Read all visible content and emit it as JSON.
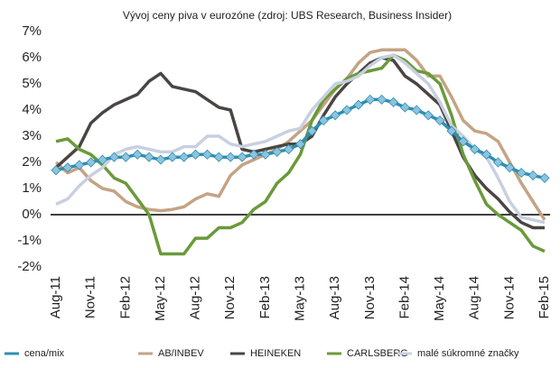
{
  "chart_data": {
    "type": "line",
    "title": "Vývoj ceny piva v eurozóne (zdroj: UBS Research, Business Insider)",
    "categories": [
      "Aug-11",
      null,
      null,
      "Nov-11",
      null,
      null,
      "Feb-12",
      null,
      null,
      "May-12",
      null,
      null,
      "Aug-12",
      null,
      null,
      "Nov-12",
      null,
      null,
      "Feb-13",
      null,
      null,
      "May-13",
      null,
      null,
      "Aug-13",
      null,
      null,
      "Nov-13",
      null,
      null,
      "Feb-14",
      null,
      null,
      "May-14",
      null,
      null,
      "Aug-14",
      null,
      null,
      "Nov-14",
      null,
      null,
      "Feb-15"
    ],
    "series": [
      {
        "name": "cena/mix",
        "color": "#2e8fb0",
        "marker": "diamond",
        "marker_color": "#8ec3de",
        "values": [
          1.7,
          1.8,
          1.9,
          2.0,
          2.1,
          2.2,
          2.2,
          2.3,
          2.2,
          2.1,
          2.2,
          2.2,
          2.3,
          2.3,
          2.2,
          2.2,
          2.2,
          2.3,
          2.3,
          2.4,
          2.5,
          2.7,
          3.2,
          3.6,
          3.8,
          4.0,
          4.2,
          4.4,
          4.4,
          4.3,
          4.1,
          4.0,
          3.8,
          3.6,
          3.2,
          2.8,
          2.5,
          2.3,
          2.0,
          1.8,
          1.6,
          1.5,
          1.4
        ]
      },
      {
        "name": "AB/INBEV",
        "color": "#c4a384",
        "values": [
          2.0,
          1.6,
          1.8,
          1.3,
          1.0,
          0.9,
          0.5,
          0.3,
          0.2,
          0.15,
          0.2,
          0.3,
          0.6,
          0.8,
          0.7,
          1.5,
          1.9,
          2.1,
          2.3,
          2.5,
          2.8,
          3.2,
          3.6,
          4.2,
          4.8,
          5.2,
          5.8,
          6.2,
          6.3,
          6.3,
          6.3,
          5.9,
          5.3,
          5.3,
          4.5,
          3.6,
          3.2,
          3.1,
          2.8,
          2.0,
          1.2,
          0.5,
          -0.2
        ]
      },
      {
        "name": "HEINEKEN",
        "color": "#4a4543",
        "values": [
          1.8,
          2.2,
          2.6,
          3.5,
          3.9,
          4.2,
          4.4,
          4.6,
          5.1,
          5.4,
          4.9,
          4.8,
          4.7,
          4.4,
          4.1,
          4.0,
          2.5,
          2.4,
          2.5,
          2.6,
          2.7,
          2.7,
          3.0,
          3.8,
          4.5,
          5.0,
          5.4,
          5.8,
          6.0,
          5.9,
          5.3,
          5.0,
          4.6,
          4.2,
          3.2,
          2.2,
          1.5,
          1.0,
          0.6,
          0.1,
          -0.3,
          -0.5,
          -0.5
        ]
      },
      {
        "name": "CARLSBERG",
        "color": "#6a9a3a",
        "values": [
          2.8,
          2.9,
          2.5,
          2.3,
          1.9,
          1.4,
          1.2,
          0.6,
          0.0,
          -1.5,
          -1.5,
          -1.5,
          -0.9,
          -0.9,
          -0.5,
          -0.5,
          -0.3,
          0.2,
          0.5,
          1.2,
          1.6,
          2.3,
          3.6,
          4.4,
          4.8,
          5.2,
          5.4,
          5.5,
          5.6,
          6.1,
          5.9,
          5.5,
          5.4,
          5.0,
          3.8,
          2.3,
          1.3,
          0.4,
          0.0,
          -0.3,
          -0.6,
          -1.2,
          -1.4
        ]
      },
      {
        "name": "malé súkromné značky",
        "color": "#c8d0e0",
        "values": [
          0.4,
          0.6,
          1.1,
          1.5,
          1.8,
          2.3,
          2.5,
          2.6,
          2.5,
          2.4,
          2.4,
          2.6,
          2.6,
          3.0,
          3.0,
          2.7,
          2.6,
          2.7,
          2.8,
          3.0,
          3.2,
          3.3,
          4.0,
          4.5,
          5.0,
          5.1,
          5.3,
          5.7,
          6.0,
          6.1,
          5.8,
          5.4,
          5.0,
          4.3,
          3.4,
          3.0,
          2.5,
          2.2,
          1.4,
          0.5,
          -0.1,
          -0.2,
          -0.3
        ]
      }
    ],
    "ylim": [
      -2,
      7
    ],
    "yticks": [
      {
        "value": -2,
        "label": "-2%"
      },
      {
        "value": -1,
        "label": "-1%"
      },
      {
        "value": 0,
        "label": "0%"
      },
      {
        "value": 1,
        "label": "1%"
      },
      {
        "value": 2,
        "label": "2%"
      },
      {
        "value": 3,
        "label": "3%"
      },
      {
        "value": 4,
        "label": "4%"
      },
      {
        "value": 5,
        "label": "5%"
      },
      {
        "value": 6,
        "label": "6%"
      },
      {
        "value": 7,
        "label": "7%"
      }
    ],
    "zero_line": true,
    "grid": false,
    "legend": "bottom"
  }
}
